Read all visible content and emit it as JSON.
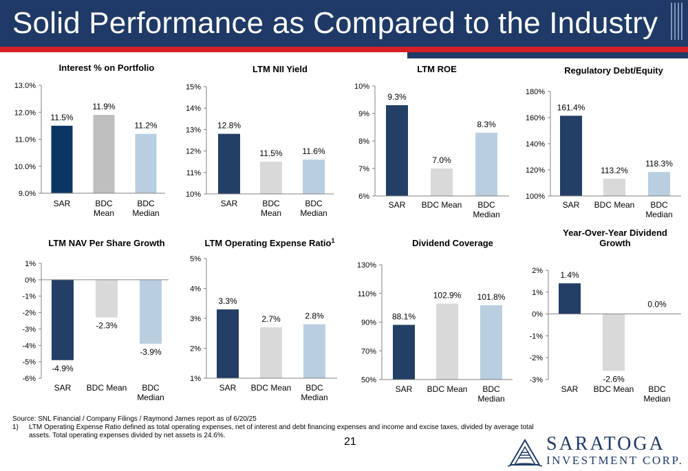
{
  "slide": {
    "title": "Solid Performance as Compared to the Industry",
    "page_number": "21",
    "source_note": "Source: SNL Financial / Company Filings / Raymond James report as of 6/20/25",
    "footnote_number": "1)",
    "footnote_text": "LTM Operating Expense Ratio defined as total operating expenses, net of  interest and debt financing expenses and income and excise taxes, divided by average total assets. Total operating expenses divided by net assets is 24.6%.",
    "logo_name": "SARATOGA",
    "logo_sub": "INVESTMENT CORP."
  },
  "colors": {
    "header": "#1f3a66",
    "accent_red": "#d62027",
    "sar_interest": "#0c3563",
    "sar": "#243f66",
    "bdc_mean_interest": "#bfbfbf",
    "bdc_mean": "#d9d9d9",
    "bdc_median": "#b9cfe0"
  },
  "chart_data": [
    {
      "id": "interest",
      "type": "bar",
      "title": "Interest % on Portfolio",
      "title_sup": "",
      "categories": [
        "SAR",
        "BDC|Mean",
        "BDC|Median"
      ],
      "values": [
        11.5,
        11.9,
        11.2
      ],
      "labels": [
        "11.5%",
        "11.9%",
        "11.2%"
      ],
      "ylim": [
        9,
        13
      ],
      "yticks": [
        9,
        10,
        11,
        12,
        13
      ],
      "ytick_labels": [
        "9.0%",
        "10.0%",
        "11.0%",
        "12.0%",
        "13.0%"
      ],
      "colors": [
        "#0c3563",
        "#bfbfbf",
        "#b9cfe0"
      ]
    },
    {
      "id": "nii",
      "type": "bar",
      "title": "LTM NII Yield",
      "title_sup": "",
      "categories": [
        "SAR",
        "BDC|Mean",
        "BDC|Median"
      ],
      "values": [
        12.8,
        11.5,
        11.6
      ],
      "labels": [
        "12.8%",
        "11.5%",
        "11.6%"
      ],
      "ylim": [
        10,
        15
      ],
      "yticks": [
        10,
        11,
        12,
        13,
        14,
        15
      ],
      "ytick_labels": [
        "10%",
        "11%",
        "12%",
        "13%",
        "14%",
        "15%"
      ],
      "colors": [
        "#243f66",
        "#d9d9d9",
        "#b9cfe0"
      ]
    },
    {
      "id": "roe",
      "type": "bar",
      "title": "LTM ROE",
      "title_sup": "",
      "categories": [
        "SAR",
        "BDC Mean",
        "BDC|Median"
      ],
      "values": [
        9.3,
        7.0,
        8.3
      ],
      "labels": [
        "9.3%",
        "7.0%",
        "8.3%"
      ],
      "ylim": [
        6,
        10
      ],
      "yticks": [
        6,
        7,
        8,
        9,
        10
      ],
      "ytick_labels": [
        "6%",
        "7%",
        "8%",
        "9%",
        "10%"
      ],
      "colors": [
        "#243f66",
        "#d9d9d9",
        "#b9cfe0"
      ]
    },
    {
      "id": "debt",
      "type": "bar",
      "title": "Regulatory Debt/Equity",
      "title_sup": "",
      "categories": [
        "SAR",
        "BDC Mean",
        "BDC|Median"
      ],
      "values": [
        161.4,
        113.2,
        118.3
      ],
      "labels": [
        "161.4%",
        "113.2%",
        "118.3%"
      ],
      "ylim": [
        100,
        180
      ],
      "yticks": [
        100,
        120,
        140,
        160,
        180
      ],
      "ytick_labels": [
        "100%",
        "120%",
        "140%",
        "160%",
        "180%"
      ],
      "colors": [
        "#243f66",
        "#d9d9d9",
        "#b9cfe0"
      ]
    },
    {
      "id": "nav",
      "type": "bar",
      "title": "LTM NAV Per Share Growth",
      "title_sup": "",
      "categories": [
        "SAR",
        "BDC Mean",
        "BDC|Median"
      ],
      "values": [
        -4.9,
        -2.3,
        -3.9
      ],
      "labels": [
        "-4.9%",
        "-2.3%",
        "-3.9%"
      ],
      "ylim": [
        -6,
        1
      ],
      "yticks": [
        -6,
        -5,
        -4,
        -3,
        -2,
        -1,
        0,
        1
      ],
      "ytick_labels": [
        "-6%",
        "-5%",
        "-4%",
        "-3%",
        "-2%",
        "-1%",
        "0%",
        "1%"
      ],
      "colors": [
        "#243f66",
        "#d9d9d9",
        "#b9cfe0"
      ]
    },
    {
      "id": "opex",
      "type": "bar",
      "title": "LTM Operating Expense Ratio",
      "title_sup": "1",
      "categories": [
        "SAR",
        "BDC Mean",
        "BDC|Median"
      ],
      "values": [
        3.3,
        2.7,
        2.8
      ],
      "labels": [
        "3.3%",
        "2.7%",
        "2.8%"
      ],
      "ylim": [
        1,
        5
      ],
      "yticks": [
        1,
        2,
        3,
        4,
        5
      ],
      "ytick_labels": [
        "1%",
        "2%",
        "3%",
        "4%",
        "5%"
      ],
      "colors": [
        "#243f66",
        "#d9d9d9",
        "#b9cfe0"
      ]
    },
    {
      "id": "coverage",
      "type": "bar",
      "title": "Dividend Coverage",
      "title_sup": "",
      "categories": [
        "SAR",
        "BDC Mean",
        "BDC|Median"
      ],
      "values": [
        88.1,
        102.9,
        101.8
      ],
      "labels": [
        "88.1%",
        "102.9%",
        "101.8%"
      ],
      "ylim": [
        50,
        130
      ],
      "yticks": [
        50,
        70,
        90,
        110,
        130
      ],
      "ytick_labels": [
        "50%",
        "70%",
        "90%",
        "110%",
        "130%"
      ],
      "colors": [
        "#243f66",
        "#d9d9d9",
        "#b9cfe0"
      ]
    },
    {
      "id": "divgrowth",
      "type": "bar",
      "title": "Year-Over-Year Dividend|Growth",
      "title_sup": "",
      "categories": [
        "SAR",
        "BDC Mean",
        "BDC|Median"
      ],
      "values": [
        1.4,
        -2.6,
        0.0
      ],
      "labels": [
        "1.4%",
        "-2.6%",
        "0.0%"
      ],
      "ylim": [
        -3,
        2
      ],
      "yticks": [
        -3,
        -2,
        -1,
        0,
        1,
        2
      ],
      "ytick_labels": [
        "-3%",
        "-2%",
        "-1%",
        "0%",
        "1%",
        "2%"
      ],
      "colors": [
        "#243f66",
        "#d9d9d9",
        "#b9cfe0"
      ]
    }
  ]
}
